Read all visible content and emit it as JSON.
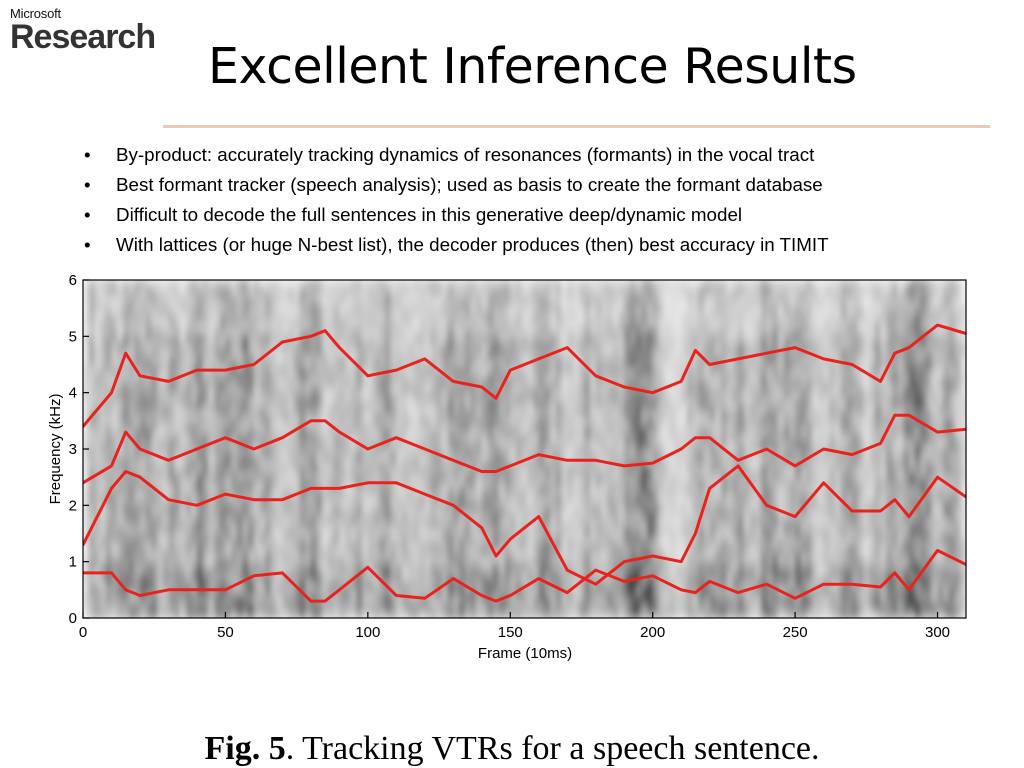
{
  "logo": {
    "company": "Microsoft",
    "division": "Research"
  },
  "slide": {
    "title": "Excellent Inference Results",
    "bullets": [
      "By-product: accurately tracking dynamics of resonances (formants) in the vocal tract",
      "Best formant tracker (speech analysis); used as basis to create the formant database",
      "Difficult to decode the full sentences in this generative deep/dynamic model",
      "With lattices (or huge N-best list), the decoder produces (then) best accuracy in TIMIT"
    ],
    "bullet_symbol": "•"
  },
  "caption": {
    "label": "Fig. 5",
    "text": ". Tracking VTRs for a speech sentence."
  },
  "colors": {
    "formant_line": "#e8231d",
    "rule": "#ecc8b6"
  },
  "chart_data": {
    "type": "line",
    "background": "spectrogram (grayscale)",
    "xlabel": "Frame (10ms)",
    "ylabel": "Frequency (kHz)",
    "xlim": [
      0,
      310
    ],
    "ylim": [
      0,
      6
    ],
    "xticks": [
      0,
      50,
      100,
      150,
      200,
      250,
      300
    ],
    "yticks": [
      0,
      1,
      2,
      3,
      4,
      5,
      6
    ],
    "grid": false,
    "legend": "none",
    "x": [
      0,
      10,
      15,
      20,
      30,
      40,
      50,
      60,
      70,
      80,
      85,
      90,
      100,
      110,
      120,
      130,
      140,
      145,
      150,
      160,
      170,
      180,
      190,
      200,
      210,
      215,
      220,
      230,
      240,
      250,
      260,
      270,
      280,
      285,
      290,
      300,
      310
    ],
    "series": [
      {
        "values": [
          0.8,
          0.8,
          0.5,
          0.4,
          0.5,
          0.5,
          0.5,
          0.75,
          0.8,
          0.3,
          0.3,
          0.5,
          0.9,
          0.4,
          0.35,
          0.7,
          0.4,
          0.3,
          0.4,
          0.7,
          0.45,
          0.85,
          0.65,
          0.75,
          0.5,
          0.45,
          0.65,
          0.45,
          0.6,
          0.35,
          0.6,
          0.6,
          0.55,
          0.8,
          0.5,
          1.2,
          0.95
        ]
      },
      {
        "values": [
          1.3,
          2.3,
          2.6,
          2.5,
          2.1,
          2.0,
          2.2,
          2.1,
          2.1,
          2.3,
          2.3,
          2.3,
          2.4,
          2.4,
          2.2,
          2.0,
          1.6,
          1.1,
          1.4,
          1.8,
          0.85,
          0.6,
          1.0,
          1.1,
          1.0,
          1.5,
          2.3,
          2.7,
          2.0,
          1.8,
          2.4,
          1.9,
          1.9,
          2.1,
          1.8,
          2.5,
          2.15
        ]
      },
      {
        "values": [
          2.4,
          2.7,
          3.3,
          3.0,
          2.8,
          3.0,
          3.2,
          3.0,
          3.2,
          3.5,
          3.5,
          3.3,
          3.0,
          3.2,
          3.0,
          2.8,
          2.6,
          2.6,
          2.7,
          2.9,
          2.8,
          2.8,
          2.7,
          2.75,
          3.0,
          3.2,
          3.2,
          2.8,
          3.0,
          2.7,
          3.0,
          2.9,
          3.1,
          3.6,
          3.6,
          3.3,
          3.35
        ]
      },
      {
        "values": [
          3.4,
          4.0,
          4.7,
          4.3,
          4.2,
          4.4,
          4.4,
          4.5,
          4.9,
          5.0,
          5.1,
          4.8,
          4.3,
          4.4,
          4.6,
          4.2,
          4.1,
          3.9,
          4.4,
          4.6,
          4.8,
          4.3,
          4.1,
          4.0,
          4.2,
          4.75,
          4.5,
          4.6,
          4.7,
          4.8,
          4.6,
          4.5,
          4.2,
          4.7,
          4.8,
          5.2,
          5.05
        ]
      }
    ]
  }
}
